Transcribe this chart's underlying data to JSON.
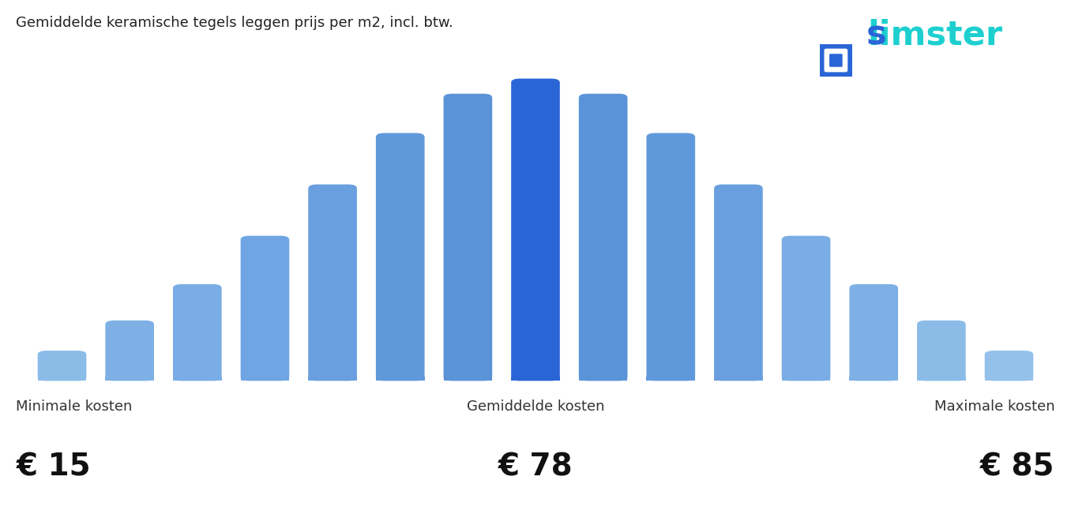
{
  "title": "Gemiddelde keramische tegels leggen prijs per m2, incl. btw.",
  "title_fontsize": 13,
  "background_color": "#ffffff",
  "bar_values": [
    1,
    2,
    3.2,
    4.8,
    6.5,
    8.2,
    9.5,
    10,
    9.5,
    8.2,
    6.5,
    4.8,
    3.2,
    2,
    1
  ],
  "bar_colors": [
    "#8bbce8",
    "#7eb0e6",
    "#7aade5",
    "#6fa5e2",
    "#6a9fdf",
    "#6099db",
    "#5b93d8",
    "#2a65d6",
    "#5b93d8",
    "#6099db",
    "#6a9fdf",
    "#7aade5",
    "#7eb0e6",
    "#8bbce8",
    "#94c1ea"
  ],
  "min_label": "Minimale kosten",
  "avg_label": "Gemiddelde kosten",
  "max_label": "Maximale kosten",
  "min_value": "€ 15",
  "avg_value": "€ 78",
  "max_value": "€ 85",
  "label_fontsize": 13,
  "value_fontsize": 28,
  "bar_width": 0.72,
  "bar_gap": 0.04
}
